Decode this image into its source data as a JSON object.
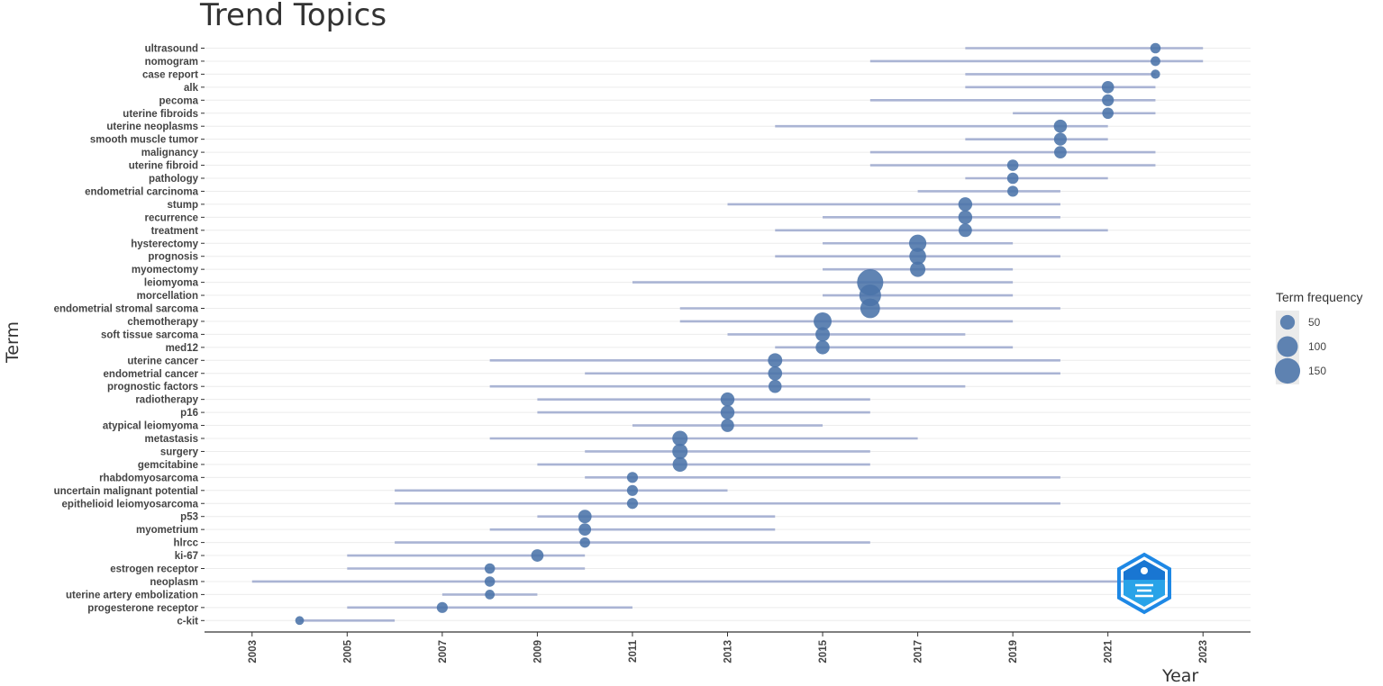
{
  "chart_data": {
    "type": "scatter",
    "title": "Trend Topics",
    "xlabel": "Year",
    "ylabel": "Term",
    "xlim": [
      2002,
      2024
    ],
    "x_ticks": [
      2003,
      2005,
      2007,
      2009,
      2011,
      2013,
      2015,
      2017,
      2019,
      2021,
      2023
    ],
    "grid": true,
    "legend_position": "right",
    "legend_title": "Term frequency",
    "legend_entries": [
      50,
      100,
      150
    ],
    "point_color": "#4a73a8",
    "range_color": "#aab4d4",
    "terms": [
      {
        "term": "ultrasound",
        "start": 2018,
        "median": 2022,
        "end": 2023,
        "freq": 25
      },
      {
        "term": "nomogram",
        "start": 2016,
        "median": 2022,
        "end": 2023,
        "freq": 22
      },
      {
        "term": "case report",
        "start": 2018,
        "median": 2022,
        "end": 2022,
        "freq": 20
      },
      {
        "term": "alk",
        "start": 2018,
        "median": 2021,
        "end": 2022,
        "freq": 35
      },
      {
        "term": "pecoma",
        "start": 2016,
        "median": 2021,
        "end": 2022,
        "freq": 33
      },
      {
        "term": "uterine fibroids",
        "start": 2019,
        "median": 2021,
        "end": 2022,
        "freq": 30
      },
      {
        "term": "uterine neoplasms",
        "start": 2014,
        "median": 2020,
        "end": 2021,
        "freq": 40
      },
      {
        "term": "smooth muscle tumor",
        "start": 2018,
        "median": 2020,
        "end": 2021,
        "freq": 38
      },
      {
        "term": "malignancy",
        "start": 2016,
        "median": 2020,
        "end": 2022,
        "freq": 36
      },
      {
        "term": "uterine fibroid",
        "start": 2016,
        "median": 2019,
        "end": 2022,
        "freq": 30
      },
      {
        "term": "pathology",
        "start": 2018,
        "median": 2019,
        "end": 2021,
        "freq": 30
      },
      {
        "term": "endometrial carcinoma",
        "start": 2017,
        "median": 2019,
        "end": 2020,
        "freq": 28
      },
      {
        "term": "stump",
        "start": 2013,
        "median": 2018,
        "end": 2020,
        "freq": 45
      },
      {
        "term": "recurrence",
        "start": 2015,
        "median": 2018,
        "end": 2020,
        "freq": 45
      },
      {
        "term": "treatment",
        "start": 2014,
        "median": 2018,
        "end": 2021,
        "freq": 42
      },
      {
        "term": "hysterectomy",
        "start": 2015,
        "median": 2017,
        "end": 2019,
        "freq": 70
      },
      {
        "term": "prognosis",
        "start": 2014,
        "median": 2017,
        "end": 2020,
        "freq": 65
      },
      {
        "term": "myomectomy",
        "start": 2015,
        "median": 2017,
        "end": 2019,
        "freq": 55
      },
      {
        "term": "leiomyoma",
        "start": 2011,
        "median": 2016,
        "end": 2019,
        "freq": 160
      },
      {
        "term": "morcellation",
        "start": 2015,
        "median": 2016,
        "end": 2019,
        "freq": 110
      },
      {
        "term": "endometrial stromal sarcoma",
        "start": 2012,
        "median": 2016,
        "end": 2020,
        "freq": 90
      },
      {
        "term": "chemotherapy",
        "start": 2012,
        "median": 2015,
        "end": 2019,
        "freq": 75
      },
      {
        "term": "soft tissue sarcoma",
        "start": 2013,
        "median": 2015,
        "end": 2018,
        "freq": 48
      },
      {
        "term": "med12",
        "start": 2014,
        "median": 2015,
        "end": 2019,
        "freq": 45
      },
      {
        "term": "uterine cancer",
        "start": 2008,
        "median": 2014,
        "end": 2020,
        "freq": 48
      },
      {
        "term": "endometrial cancer",
        "start": 2010,
        "median": 2014,
        "end": 2020,
        "freq": 46
      },
      {
        "term": "prognostic factors",
        "start": 2008,
        "median": 2014,
        "end": 2018,
        "freq": 40
      },
      {
        "term": "radiotherapy",
        "start": 2009,
        "median": 2013,
        "end": 2016,
        "freq": 45
      },
      {
        "term": "p16",
        "start": 2009,
        "median": 2013,
        "end": 2016,
        "freq": 45
      },
      {
        "term": "atypical leiomyoma",
        "start": 2011,
        "median": 2013,
        "end": 2015,
        "freq": 40
      },
      {
        "term": "metastasis",
        "start": 2008,
        "median": 2012,
        "end": 2017,
        "freq": 55
      },
      {
        "term": "surgery",
        "start": 2010,
        "median": 2012,
        "end": 2016,
        "freq": 55
      },
      {
        "term": "gemcitabine",
        "start": 2009,
        "median": 2012,
        "end": 2016,
        "freq": 50
      },
      {
        "term": "rhabdomyosarcoma",
        "start": 2010,
        "median": 2011,
        "end": 2020,
        "freq": 28
      },
      {
        "term": "uncertain malignant potential",
        "start": 2006,
        "median": 2011,
        "end": 2013,
        "freq": 28
      },
      {
        "term": "epithelioid leiomyosarcoma",
        "start": 2006,
        "median": 2011,
        "end": 2020,
        "freq": 28
      },
      {
        "term": "p53",
        "start": 2009,
        "median": 2010,
        "end": 2014,
        "freq": 42
      },
      {
        "term": "myometrium",
        "start": 2008,
        "median": 2010,
        "end": 2014,
        "freq": 36
      },
      {
        "term": "hlrcc",
        "start": 2006,
        "median": 2010,
        "end": 2016,
        "freq": 25
      },
      {
        "term": "ki-67",
        "start": 2005,
        "median": 2009,
        "end": 2010,
        "freq": 36
      },
      {
        "term": "estrogen receptor",
        "start": 2005,
        "median": 2008,
        "end": 2010,
        "freq": 25
      },
      {
        "term": "neoplasm",
        "start": 2003,
        "median": 2008,
        "end": 2022,
        "freq": 25
      },
      {
        "term": "uterine artery embolization",
        "start": 2007,
        "median": 2008,
        "end": 2009,
        "freq": 22
      },
      {
        "term": "progesterone receptor",
        "start": 2005,
        "median": 2007,
        "end": 2011,
        "freq": 28
      },
      {
        "term": "c-kit",
        "start": 2004,
        "median": 2004,
        "end": 2006,
        "freq": 18
      }
    ]
  }
}
